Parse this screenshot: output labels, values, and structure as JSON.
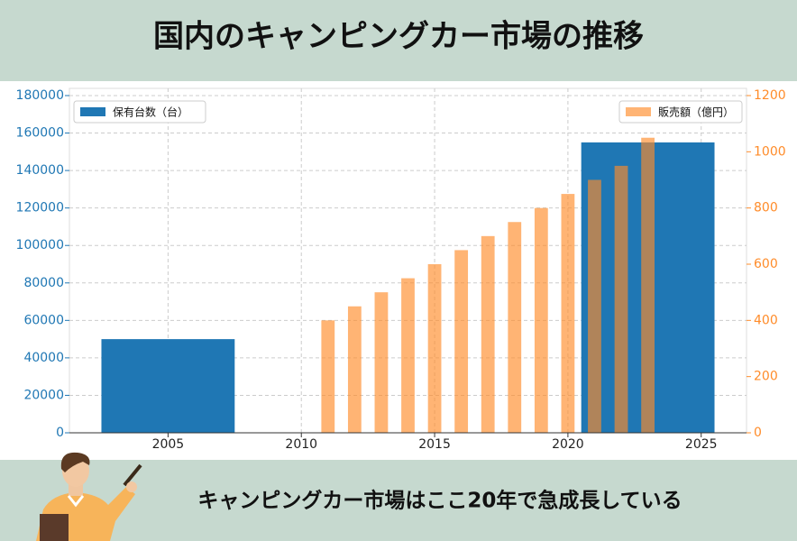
{
  "chart_data": {
    "type": "bar",
    "title": "国内のキャンピングカー市場の推移",
    "xlim": [
      2001.3,
      2026.7
    ],
    "xticks": [
      2005,
      2010,
      2015,
      2020,
      2025
    ],
    "ylim": [
      0,
      180000
    ],
    "yticks": [
      0,
      20000,
      40000,
      60000,
      80000,
      100000,
      120000,
      140000,
      160000,
      180000
    ],
    "y2lim": [
      0,
      1200
    ],
    "y2ticks": [
      0,
      200,
      400,
      600,
      800,
      1000,
      1200
    ],
    "grid": true,
    "series": [
      {
        "name": "保有台数（台）",
        "color": "#1f77b4",
        "legend_loc": "upper left",
        "x": [
          2005,
          2023
        ],
        "values": [
          50000,
          155000
        ]
      },
      {
        "name": "販売額（億円）",
        "color": "#ff8c2a",
        "axis": "y2",
        "legend_loc": "upper right",
        "x": [
          2011,
          2012,
          2013,
          2014,
          2015,
          2016,
          2017,
          2018,
          2019,
          2020,
          2021,
          2022,
          2023
        ],
        "values": [
          400,
          450,
          500,
          550,
          600,
          650,
          700,
          750,
          800,
          850,
          900,
          950,
          1050
        ]
      }
    ]
  },
  "caption": "キャンピングカー市場はここ20年で急成長している"
}
